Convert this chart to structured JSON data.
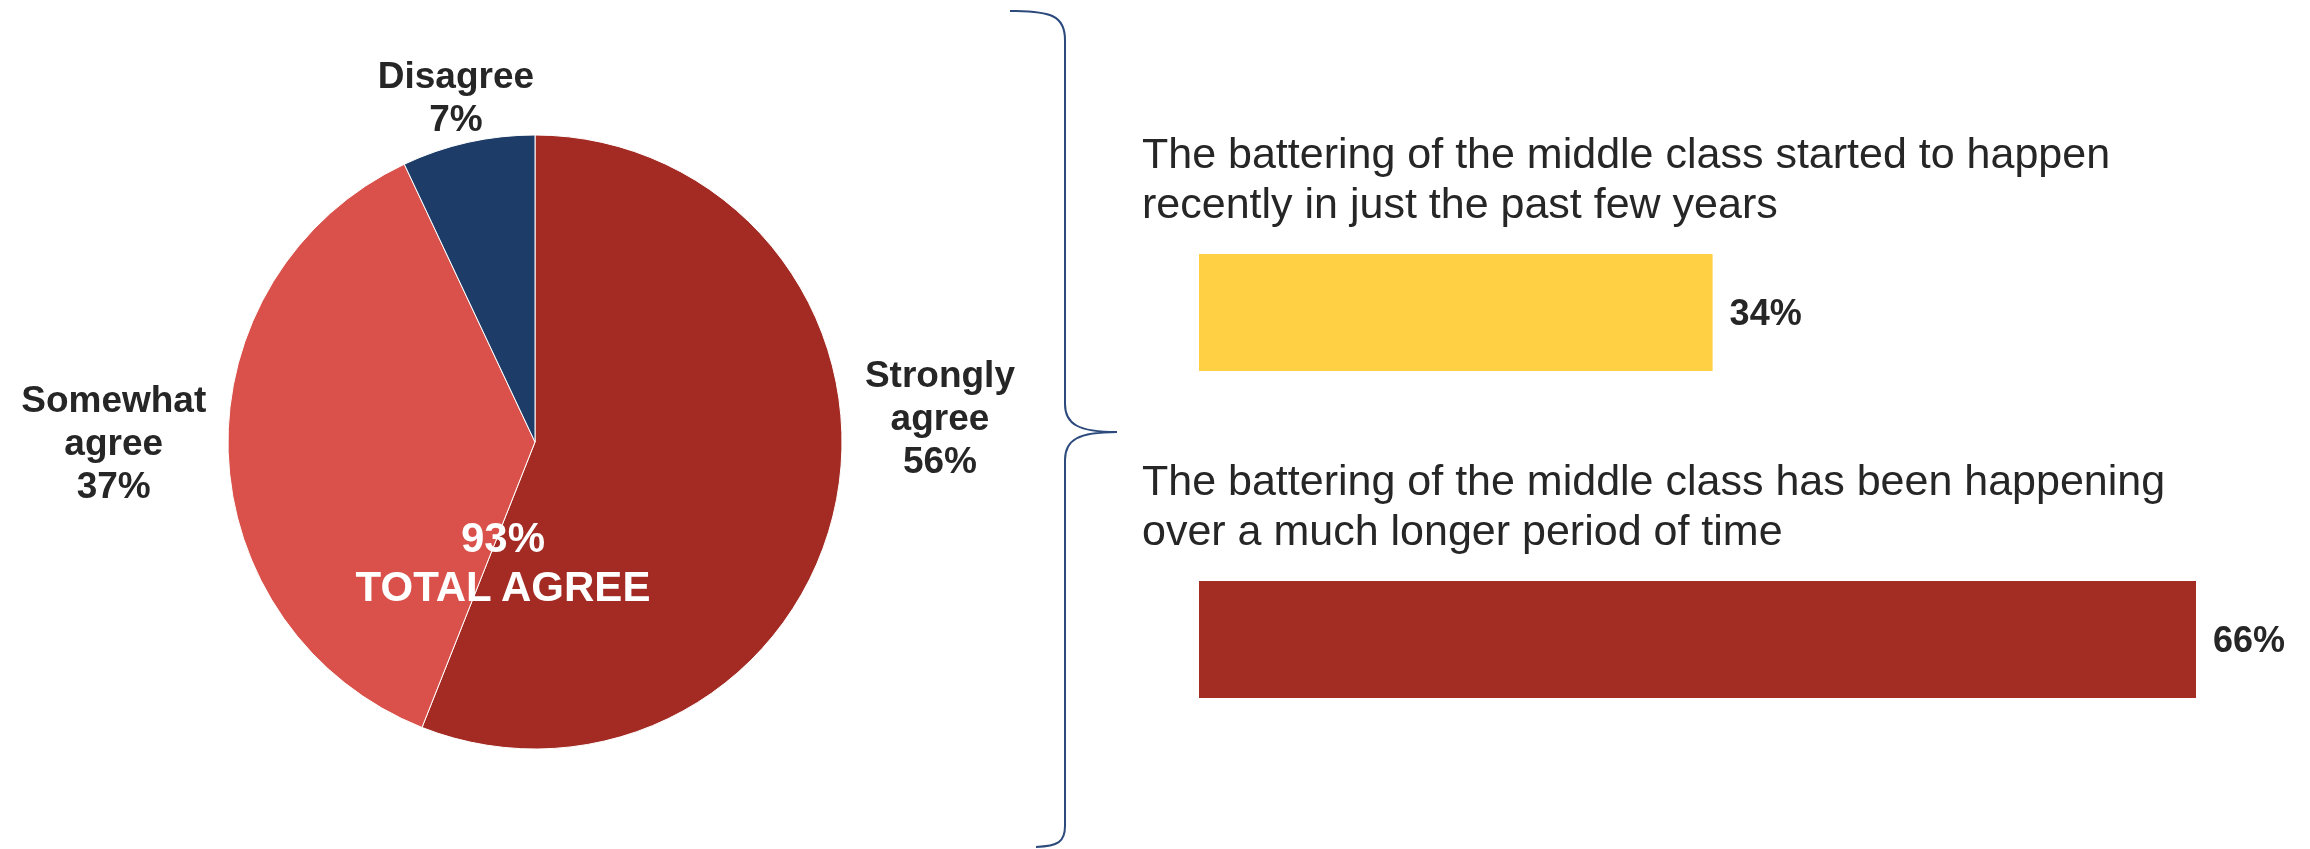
{
  "chart_data": [
    {
      "type": "pie",
      "categories": [
        "Strongly agree",
        "Somewhat agree",
        "Disagree"
      ],
      "values": [
        56,
        37,
        7
      ],
      "colors": [
        "#a32b23",
        "#d9514a",
        "#1d3d68"
      ],
      "value_labels": [
        "56%",
        "37%",
        "7%"
      ],
      "annotations": [
        "93%",
        "TOTAL AGREE"
      ]
    },
    {
      "type": "bar",
      "orientation": "horizontal",
      "categories": [
        "The battering of the middle class started to happen recently in just the past few years",
        "The battering of the middle class has been happening over a much longer period of time"
      ],
      "values": [
        34,
        66
      ],
      "colors": [
        "#ffcf44",
        "#a32c23"
      ],
      "value_labels": [
        "34%",
        "66%"
      ],
      "tick_labels": "y"
    }
  ]
}
